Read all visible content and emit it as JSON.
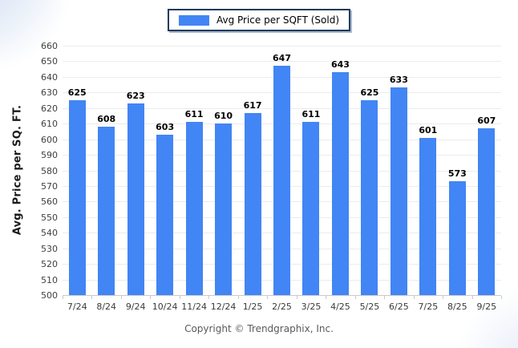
{
  "legend": {
    "label": "Avg Price per SQFT (Sold)",
    "swatch_color": "#4285f4"
  },
  "footer": {
    "copyright": "Copyright © Trendgraphix, Inc."
  },
  "chart_data": {
    "type": "bar",
    "title": "Avg Price per SQFT (Sold)",
    "categories": [
      "7/24",
      "8/24",
      "9/24",
      "10/24",
      "11/24",
      "12/24",
      "1/25",
      "2/25",
      "3/25",
      "4/25",
      "5/25",
      "6/25",
      "7/25",
      "8/25",
      "9/25"
    ],
    "values": [
      625,
      608,
      623,
      603,
      611,
      610,
      617,
      647,
      611,
      643,
      625,
      633,
      601,
      573,
      607
    ],
    "xlabel": "",
    "ylabel": "Avg. Price per SQ. FT.",
    "ylim": [
      500,
      660
    ],
    "ytick_step": 10,
    "grid": true,
    "value_labels": true,
    "legend_position": "top-center",
    "bar_color": "#4285f4"
  },
  "colors": {
    "bar": "#4285f4",
    "gridline": "#ececec",
    "axis_line": "#c9c9c9",
    "legend_border": "#1e3a5e",
    "tick_text": "#404040",
    "value_text": "#000000",
    "footer_text": "#595959"
  }
}
